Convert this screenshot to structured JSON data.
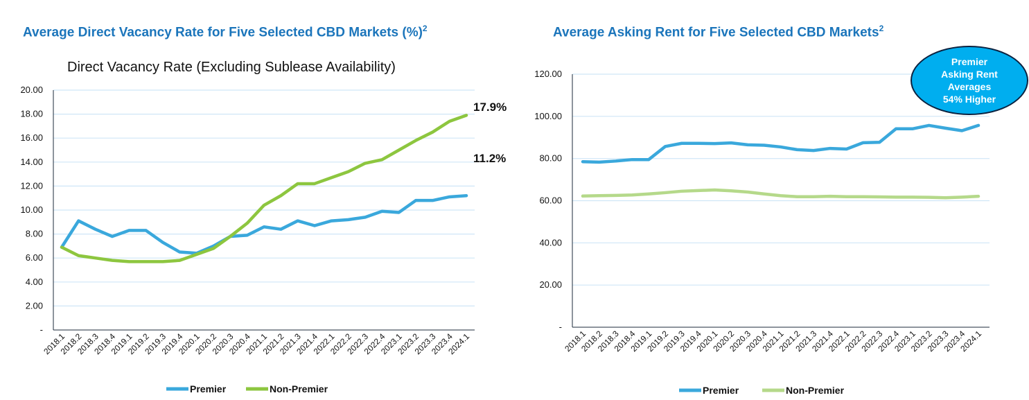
{
  "chart_data": [
    {
      "type": "line",
      "title": "Average Direct Vacancy Rate for Five Selected CBD Markets (%)",
      "title_sup": "2",
      "subtitle": "Direct Vacancy Rate (Excluding Sublease Availability)",
      "categories": [
        "2018.1",
        "2018.2",
        "2018.3",
        "2018.4",
        "2019.1",
        "2019.2",
        "2019.3",
        "2019.4",
        "2020.1",
        "2020.2",
        "2020.3",
        "2020.4",
        "2021.1",
        "2021.2",
        "2021.3",
        "2021.4",
        "2022.1",
        "2022.2",
        "2022.3",
        "2022.4",
        "2023.1",
        "2023.2",
        "2023.3",
        "2023.4",
        "2024.1"
      ],
      "ylim": [
        0,
        20
      ],
      "yticks": [
        "-",
        "2.00",
        "4.00",
        "6.00",
        "8.00",
        "10.00",
        "12.00",
        "14.00",
        "16.00",
        "18.00",
        "20.00"
      ],
      "grid": true,
      "legend": "bottom",
      "series": [
        {
          "name": "Premier",
          "color": "#3aa8dc",
          "values": [
            6.9,
            9.1,
            8.4,
            7.8,
            8.3,
            8.3,
            7.3,
            6.5,
            6.4,
            7.0,
            7.8,
            7.9,
            8.6,
            8.4,
            9.1,
            8.7,
            9.1,
            9.2,
            9.4,
            9.9,
            9.8,
            10.8,
            10.8,
            11.1,
            11.2
          ]
        },
        {
          "name": "Non-Premier",
          "color": "#8dc63f",
          "values": [
            6.9,
            6.2,
            6.0,
            5.8,
            5.7,
            5.7,
            5.7,
            5.8,
            6.3,
            6.8,
            7.8,
            8.9,
            10.4,
            11.2,
            12.2,
            12.2,
            12.7,
            13.2,
            13.9,
            14.2,
            15.0,
            15.8,
            16.5,
            17.4,
            17.9
          ]
        }
      ],
      "annotations": [
        "17.9%",
        "11.2%"
      ]
    },
    {
      "type": "line",
      "title": "Average Asking Rent for Five Selected CBD Markets",
      "title_sup": "2",
      "categories": [
        "2018.1",
        "2018.2",
        "2018.3",
        "2018.4",
        "2019.1",
        "2019.2",
        "2019.3",
        "2019.4",
        "2020.1",
        "2020.2",
        "2020.3",
        "2020.4",
        "2021.1",
        "2021.2",
        "2021.3",
        "2021.4",
        "2022.1",
        "2022.2",
        "2022.3",
        "2022.4",
        "2023.1",
        "2023.2",
        "2023.3",
        "2023.4",
        "2024.1"
      ],
      "ylim": [
        0,
        120
      ],
      "yticks": [
        "-",
        "20.00",
        "40.00",
        "60.00",
        "80.00",
        "100.00",
        "120.00"
      ],
      "grid": true,
      "legend": "bottom",
      "series": [
        {
          "name": "Premier",
          "color": "#3aa8dc",
          "values": [
            78.5,
            78.3,
            78.8,
            79.5,
            79.5,
            85.7,
            87.2,
            87.2,
            87.1,
            87.4,
            86.5,
            86.3,
            85.5,
            84.2,
            83.8,
            84.8,
            84.5,
            87.5,
            87.7,
            94.1,
            94.1,
            95.7,
            94.4,
            93.2,
            95.7
          ]
        },
        {
          "name": "Non-Premier",
          "color": "#b5d98a",
          "values": [
            62.2,
            62.4,
            62.5,
            62.7,
            63.2,
            63.8,
            64.5,
            64.8,
            65.1,
            64.7,
            64.1,
            63.2,
            62.4,
            61.9,
            61.9,
            62.1,
            61.9,
            61.9,
            61.8,
            61.7,
            61.7,
            61.6,
            61.4,
            61.7,
            62.1
          ]
        }
      ],
      "callout": [
        "Premier",
        "Asking Rent",
        "Averages",
        "54% Higher"
      ]
    }
  ]
}
